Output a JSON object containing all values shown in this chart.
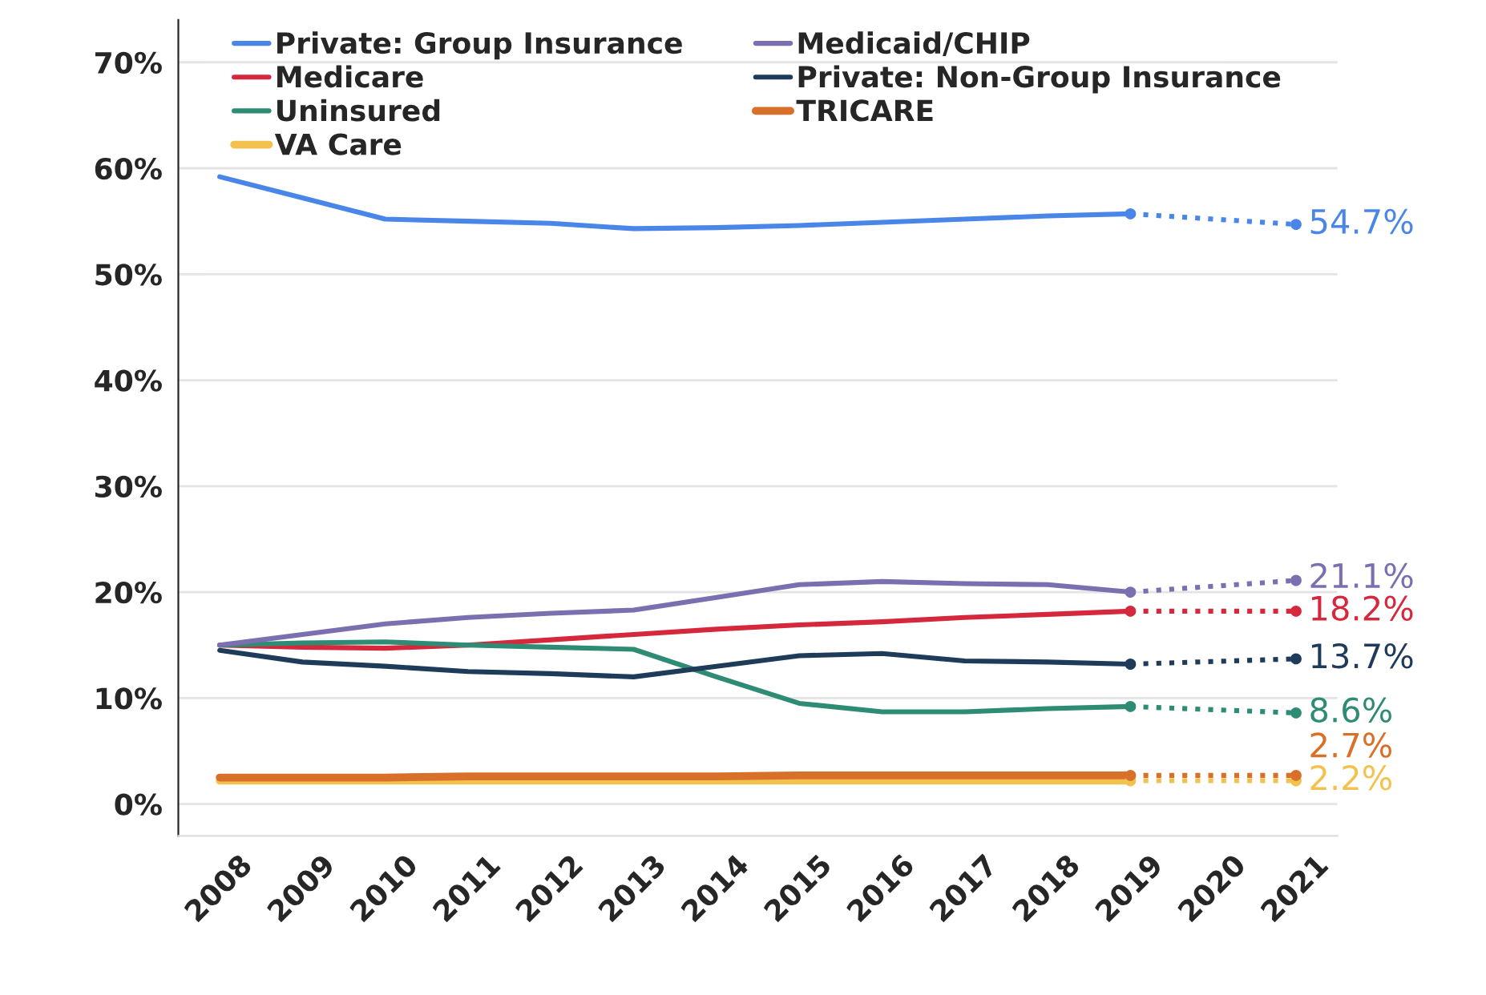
{
  "chart_data": {
    "type": "line",
    "categories": [
      "2008",
      "2009",
      "2010",
      "2011",
      "2012",
      "2013",
      "2014",
      "2015",
      "2016",
      "2017",
      "2018",
      "2019",
      "2020",
      "2021"
    ],
    "ylim": [
      -3,
      74
    ],
    "yticks": [
      {
        "value": 0,
        "label": "0%"
      },
      {
        "value": 10,
        "label": "10%"
      },
      {
        "value": 20,
        "label": "20%"
      },
      {
        "value": 30,
        "label": "30%"
      },
      {
        "value": 40,
        "label": "40%"
      },
      {
        "value": 50,
        "label": "50%"
      },
      {
        "value": 60,
        "label": "60%"
      },
      {
        "value": 70,
        "label": "70%"
      }
    ],
    "grid": "y",
    "legend": "top",
    "line_style": "solid",
    "marker": "none",
    "series": [
      {
        "name": "Private: Group Insurance",
        "color": "#4a86e8",
        "values": [
          59.2,
          57.2,
          55.2,
          55.0,
          54.8,
          54.3,
          54.4,
          54.6,
          54.9,
          55.2,
          55.5,
          55.7,
          null,
          null
        ]
      },
      {
        "name": "Medicare",
        "color": "#d6283c",
        "values": [
          15.0,
          14.8,
          14.7,
          15.0,
          15.5,
          16.0,
          16.5,
          16.9,
          17.2,
          17.6,
          17.9,
          18.2,
          null,
          null
        ]
      },
      {
        "name": "Uninsured",
        "color": "#2e8b74",
        "values": [
          15.0,
          15.2,
          15.3,
          15.0,
          14.8,
          14.6,
          12.0,
          9.5,
          8.7,
          8.7,
          9.0,
          9.2,
          null,
          null
        ]
      },
      {
        "name": "VA Care",
        "color": "#f2c14e",
        "values": [
          2.2,
          2.2,
          2.2,
          2.2,
          2.2,
          2.2,
          2.2,
          2.2,
          2.2,
          2.2,
          2.2,
          2.2,
          null,
          null
        ]
      },
      {
        "name": "Medicaid/CHIP",
        "color": "#7b6fb0",
        "values": [
          15.0,
          16.0,
          17.0,
          17.6,
          18.0,
          18.3,
          19.5,
          20.7,
          21.0,
          20.8,
          20.7,
          20.0,
          null,
          null
        ]
      },
      {
        "name": "Private: Non-Group Insurance",
        "color": "#1f3b5a",
        "values": [
          14.5,
          13.4,
          13.0,
          12.5,
          12.3,
          12.0,
          13.0,
          14.0,
          14.2,
          13.5,
          13.4,
          13.2,
          null,
          null
        ]
      },
      {
        "name": "TRICARE",
        "color": "#d9702a",
        "values": [
          2.5,
          2.5,
          2.5,
          2.6,
          2.6,
          2.6,
          2.6,
          2.7,
          2.7,
          2.7,
          2.7,
          2.7,
          null,
          null
        ]
      },
      {
        "color": "#4a86e8",
        "line_style": "dotted",
        "marker": "circle",
        "values": [
          null,
          null,
          null,
          null,
          null,
          null,
          null,
          null,
          null,
          null,
          null,
          55.7,
          null,
          54.7
        ],
        "value_labels": [
          null,
          null,
          null,
          null,
          null,
          null,
          null,
          null,
          null,
          null,
          null,
          null,
          null,
          "54.7%"
        ]
      },
      {
        "color": "#d6283c",
        "line_style": "dotted",
        "marker": "circle",
        "values": [
          null,
          null,
          null,
          null,
          null,
          null,
          null,
          null,
          null,
          null,
          null,
          18.2,
          null,
          18.2
        ],
        "value_labels": [
          null,
          null,
          null,
          null,
          null,
          null,
          null,
          null,
          null,
          null,
          null,
          null,
          null,
          "18.2%"
        ]
      },
      {
        "color": "#2e8b74",
        "line_style": "dotted",
        "marker": "circle",
        "values": [
          null,
          null,
          null,
          null,
          null,
          null,
          null,
          null,
          null,
          null,
          null,
          9.2,
          null,
          8.6
        ],
        "value_labels": [
          null,
          null,
          null,
          null,
          null,
          null,
          null,
          null,
          null,
          null,
          null,
          null,
          null,
          "8.6%"
        ]
      },
      {
        "color": "#f2c14e",
        "line_style": "dotted",
        "marker": "circle",
        "values": [
          null,
          null,
          null,
          null,
          null,
          null,
          null,
          null,
          null,
          null,
          null,
          2.2,
          null,
          2.2
        ],
        "value_labels": [
          null,
          null,
          null,
          null,
          null,
          null,
          null,
          null,
          null,
          null,
          null,
          null,
          null,
          "2.2%"
        ]
      },
      {
        "color": "#7b6fb0",
        "line_style": "dotted",
        "marker": "circle",
        "values": [
          null,
          null,
          null,
          null,
          null,
          null,
          null,
          null,
          null,
          null,
          null,
          20.0,
          null,
          21.1
        ],
        "value_labels": [
          null,
          null,
          null,
          null,
          null,
          null,
          null,
          null,
          null,
          null,
          null,
          null,
          null,
          "21.1%"
        ]
      },
      {
        "color": "#1f3b5a",
        "line_style": "dotted",
        "marker": "circle",
        "values": [
          null,
          null,
          null,
          null,
          null,
          null,
          null,
          null,
          null,
          null,
          null,
          13.2,
          null,
          13.7
        ],
        "value_labels": [
          null,
          null,
          null,
          null,
          null,
          null,
          null,
          null,
          null,
          null,
          null,
          null,
          null,
          "13.7%"
        ]
      },
      {
        "color": "#d9702a",
        "line_style": "dotted",
        "marker": "circle",
        "values": [
          null,
          null,
          null,
          null,
          null,
          null,
          null,
          null,
          null,
          null,
          null,
          2.7,
          null,
          2.7
        ],
        "value_labels": [
          null,
          null,
          null,
          null,
          null,
          null,
          null,
          null,
          null,
          null,
          null,
          null,
          null,
          "2.7%"
        ]
      }
    ]
  }
}
